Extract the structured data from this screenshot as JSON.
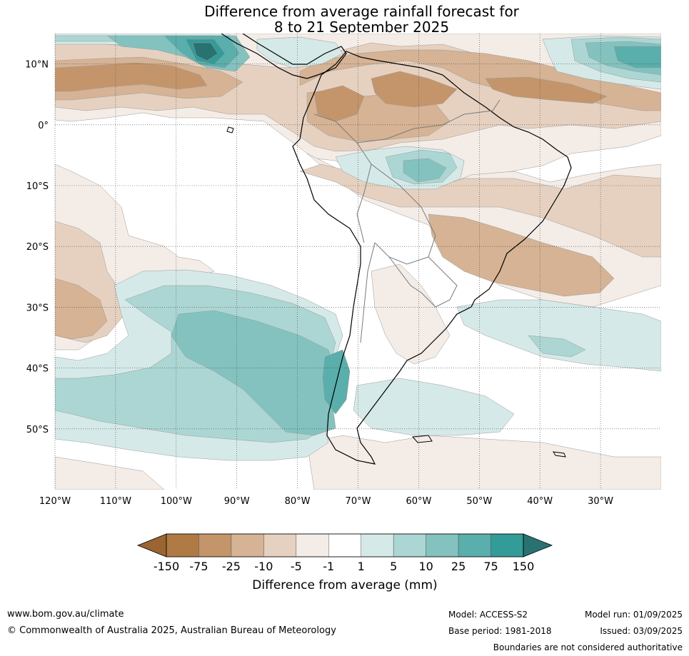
{
  "title_line1": "Difference from average rainfall forecast for",
  "title_line2": "8 to 21 September 2025",
  "map": {
    "lon_ticks": [
      {
        "label": "120°W",
        "lon": -120
      },
      {
        "label": "110°W",
        "lon": -110
      },
      {
        "label": "100°W",
        "lon": -100
      },
      {
        "label": "90°W",
        "lon": -90
      },
      {
        "label": "80°W",
        "lon": -80
      },
      {
        "label": "70°W",
        "lon": -70
      },
      {
        "label": "60°W",
        "lon": -60
      },
      {
        "label": "50°W",
        "lon": -50
      },
      {
        "label": "40°W",
        "lon": -40
      },
      {
        "label": "30°W",
        "lon": -30
      }
    ],
    "lat_ticks": [
      {
        "label": "10°N",
        "lat": 10
      },
      {
        "label": "0°",
        "lat": 0
      },
      {
        "label": "10°S",
        "lat": -10
      },
      {
        "label": "20°S",
        "lat": -20
      },
      {
        "label": "30°S",
        "lat": -30
      },
      {
        "label": "40°S",
        "lat": -40
      },
      {
        "label": "50°S",
        "lat": -50
      }
    ]
  },
  "colorbar": {
    "label": "Difference from average (mm)",
    "ticks": [
      "-150",
      "-75",
      "-25",
      "-10",
      "-5",
      "-1",
      "1",
      "5",
      "10",
      "25",
      "75",
      "150"
    ],
    "colors": [
      "#9b6433",
      "#b07a44",
      "#c4956b",
      "#d5b394",
      "#e6d1c0",
      "#f4ece6",
      "#ffffff",
      "#d5eae8",
      "#acd6d3",
      "#83c2bf",
      "#5aaeab",
      "#339b98",
      "#287371"
    ]
  },
  "footer": {
    "website": "www.bom.gov.au/climate",
    "copyright": "© Commonwealth of Australia 2025, Australian Bureau of Meteorology",
    "model": "Model: ACCESS-S2",
    "base_period": "Base period: 1981-2018",
    "model_run": "Model run: 01/09/2025",
    "issued": "Issued: 03/09/2025",
    "disclaimer": "Boundaries are not considered authoritative"
  }
}
